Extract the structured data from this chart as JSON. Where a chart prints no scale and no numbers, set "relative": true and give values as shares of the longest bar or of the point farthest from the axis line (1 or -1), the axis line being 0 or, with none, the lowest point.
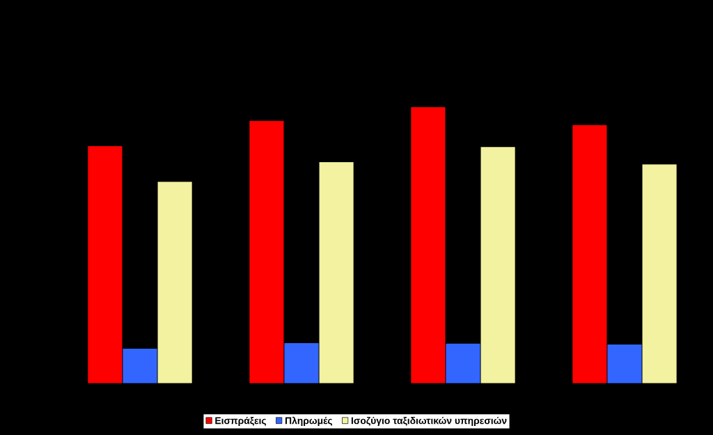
{
  "chart_data": {
    "type": "bar",
    "relative": true,
    "categories": [
      null,
      null,
      null,
      null
    ],
    "legend": "bottom",
    "grid": false,
    "series": [
      {
        "name": "Εισπράξεις",
        "color": "#ff0000",
        "values": [
          0.859,
          0.95,
          1,
          0.935
        ]
      },
      {
        "name": "Πληρωμές",
        "color": "#3366ff",
        "values": [
          0.126,
          0.146,
          0.144,
          0.141
        ]
      },
      {
        "name": "Ισοζύγιο ταξιδιωτικών υπηρεσιών",
        "color": "#f2f2a0",
        "values": [
          0.73,
          0.801,
          0.856,
          0.793
        ]
      }
    ]
  }
}
